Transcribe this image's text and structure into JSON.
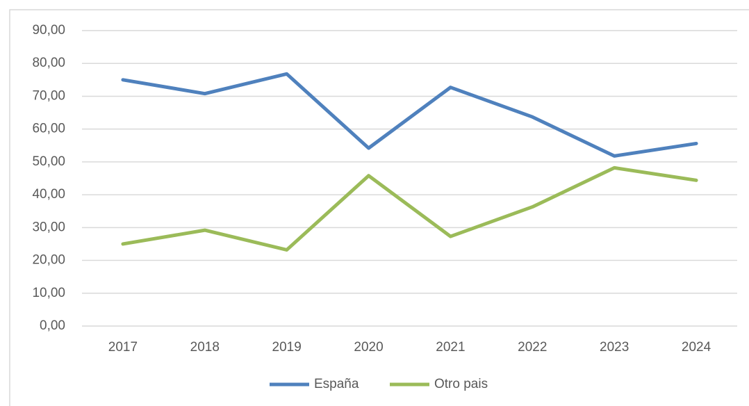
{
  "chart_data": {
    "type": "line",
    "categories": [
      "2017",
      "2018",
      "2019",
      "2020",
      "2021",
      "2022",
      "2023",
      "2024"
    ],
    "series": [
      {
        "name": "España",
        "color": "#4f81bd",
        "values": [
          75.0,
          70.8,
          76.8,
          54.2,
          72.7,
          63.7,
          51.8,
          55.6
        ]
      },
      {
        "name": "Otro pais",
        "color": "#9bbb59",
        "values": [
          25.0,
          29.2,
          23.2,
          45.8,
          27.3,
          36.3,
          48.2,
          44.4
        ]
      }
    ],
    "ylim": [
      0,
      90
    ],
    "yticks": [
      {
        "value": 0,
        "label": "0,00"
      },
      {
        "value": 10,
        "label": "10,00"
      },
      {
        "value": 20,
        "label": "20,00"
      },
      {
        "value": 30,
        "label": "30,00"
      },
      {
        "value": 40,
        "label": "40,00"
      },
      {
        "value": 50,
        "label": "50,00"
      },
      {
        "value": 60,
        "label": "60,00"
      },
      {
        "value": 70,
        "label": "70,00"
      },
      {
        "value": 80,
        "label": "80,00"
      },
      {
        "value": 90,
        "label": "90,00"
      }
    ],
    "grid": true,
    "legend": "bottom"
  }
}
